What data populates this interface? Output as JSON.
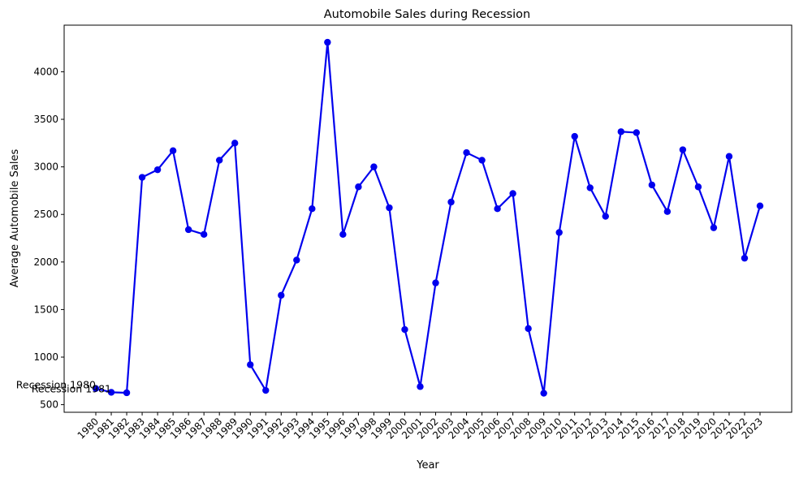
{
  "chart_data": {
    "type": "line",
    "title": "Automobile Sales during Recession",
    "xlabel": "Year",
    "ylabel": "Average Automobile Sales",
    "x": [
      1980,
      1981,
      1982,
      1983,
      1984,
      1985,
      1986,
      1987,
      1988,
      1989,
      1990,
      1991,
      1992,
      1993,
      1994,
      1995,
      1996,
      1997,
      1998,
      1999,
      2000,
      2001,
      2002,
      2003,
      2004,
      2005,
      2006,
      2007,
      2008,
      2009,
      2010,
      2011,
      2012,
      2013,
      2014,
      2015,
      2016,
      2017,
      2018,
      2019,
      2020,
      2021,
      2022,
      2023
    ],
    "series": [
      {
        "values": [
          670,
          630,
          625,
          2890,
          2970,
          3170,
          2340,
          2290,
          3070,
          3250,
          920,
          650,
          1650,
          2020,
          2560,
          4310,
          2290,
          2790,
          3000,
          2570,
          1290,
          690,
          1780,
          2630,
          3150,
          3070,
          2560,
          2720,
          1300,
          620,
          2310,
          3320,
          2780,
          2480,
          3370,
          3360,
          2810,
          2530,
          3180,
          2790,
          2360,
          3110,
          2040,
          2590
        ]
      }
    ],
    "ylim": [
      420,
      4490
    ],
    "yticks": [
      500,
      1000,
      1500,
      2000,
      2500,
      3000,
      3500,
      4000
    ],
    "grid": false,
    "legend": "none",
    "line_color": "#0000ee",
    "annotations": [
      {
        "text": "Recession 1980",
        "x": 1980,
        "y": 670
      },
      {
        "text": "Recession 1981",
        "x": 1981,
        "y": 630
      }
    ]
  }
}
